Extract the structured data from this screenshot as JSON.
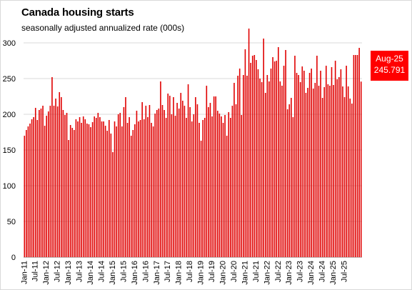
{
  "chart_data": {
    "type": "bar",
    "title": "Canada housing starts",
    "subtitle": "seasonally adjusted annualized rate (000s)",
    "xlabel": "",
    "ylabel": "",
    "ylim": [
      0,
      320
    ],
    "yticks": [
      0,
      50,
      100,
      150,
      200,
      250,
      300
    ],
    "grid": true,
    "bar_color": "#e00000",
    "callout_color": "#ff0000",
    "xtick_labels": [
      "Jan-11",
      "Jul-11",
      "Jan-12",
      "Jul-12",
      "Jan-13",
      "Jul-13",
      "Jan-14",
      "Jul-14",
      "Jan-15",
      "Jul-15",
      "Jan-16",
      "Jul-16",
      "Jan-17",
      "Jul-17",
      "Jan-18",
      "Jul-18",
      "Jan-19",
      "Jul-19",
      "Jan-20",
      "Jul-20",
      "Jan-21",
      "Jul-21",
      "Jan-22",
      "Jul-22",
      "Jan-23",
      "Jul-23",
      "Jan-24",
      "Jul-24",
      "Jan-25",
      "Jul-25"
    ],
    "x_start": "Jan-11",
    "x_end": "Aug-25",
    "annotation": {
      "label": "Aug-25",
      "value": "245.791"
    },
    "values": [
      170,
      178,
      183,
      187,
      193,
      196,
      209,
      192,
      206,
      208,
      212,
      184,
      198,
      204,
      212,
      252,
      212,
      222,
      211,
      231,
      224,
      206,
      199,
      202,
      164,
      185,
      181,
      178,
      193,
      190,
      196,
      188,
      197,
      193,
      187,
      186,
      182,
      189,
      197,
      195,
      202,
      196,
      190,
      190,
      184,
      177,
      192,
      173,
      147,
      190,
      183,
      200,
      202,
      183,
      210,
      224,
      188,
      196,
      170,
      178,
      186,
      205,
      190,
      192,
      217,
      193,
      212,
      196,
      213,
      188,
      183,
      201,
      206,
      208,
      246,
      213,
      206,
      195,
      229,
      226,
      200,
      224,
      198,
      216,
      208,
      230,
      219,
      212,
      195,
      242,
      210,
      190,
      200,
      224,
      214,
      188,
      163,
      192,
      195,
      240,
      210,
      216,
      197,
      225,
      225,
      205,
      201,
      197,
      188,
      199,
      170,
      203,
      195,
      212,
      244,
      214,
      254,
      264,
      199,
      255,
      291,
      254,
      320,
      272,
      282,
      283,
      276,
      263,
      250,
      245,
      306,
      230,
      255,
      246,
      264,
      280,
      274,
      275,
      294,
      246,
      240,
      268,
      290,
      207,
      214,
      223,
      196,
      282,
      258,
      255,
      245,
      267,
      261,
      230,
      237,
      258,
      264,
      236,
      244,
      282,
      240,
      261,
      223,
      238,
      268,
      242,
      240,
      266,
      241,
      275,
      249,
      252,
      263,
      239,
      224,
      268,
      239,
      222,
      215,
      283,
      283,
      283,
      293,
      245.791
    ]
  }
}
